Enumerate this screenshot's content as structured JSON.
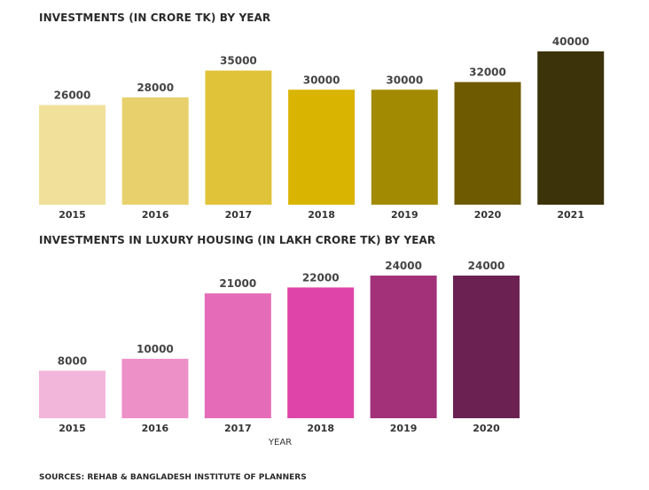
{
  "chart_data": [
    {
      "type": "bar",
      "title": "INVESTMENTS (IN CRORE TK) BY YEAR",
      "categories": [
        "2015",
        "2016",
        "2017",
        "2018",
        "2019",
        "2020",
        "2021"
      ],
      "values": [
        26000,
        28000,
        35000,
        30000,
        30000,
        32000,
        40000
      ],
      "data_labels": [
        "26000",
        "28000",
        "35000",
        "30000",
        "30000",
        "32000",
        "40000"
      ],
      "colors": [
        "#f0e09a",
        "#e8d16c",
        "#e1c33a",
        "#d9b400",
        "#a38a03",
        "#6e5a00",
        "#3c330b"
      ],
      "xlabel": "",
      "ylabel": "",
      "ylim": [
        0,
        40000
      ],
      "grid": false,
      "legend": "none"
    },
    {
      "type": "bar",
      "title": "INVESTMENTS IN LUXURY HOUSING (IN LAKH CRORE TK) BY YEAR",
      "categories": [
        "2015",
        "2016",
        "2017",
        "2018",
        "2019",
        "2020"
      ],
      "values": [
        8000,
        10000,
        21000,
        22000,
        24000,
        24000
      ],
      "data_labels": [
        "8000",
        "10000",
        "21000",
        "22000",
        "24000",
        "24000"
      ],
      "colors": [
        "#f3b6db",
        "#ee90c8",
        "#e56bb8",
        "#df45a9",
        "#a2317a",
        "#6b2252"
      ],
      "xlabel": "YEAR",
      "ylabel": "",
      "ylim": [
        0,
        24000
      ],
      "grid": false,
      "legend": "none"
    }
  ],
  "source": "SOURCES: REHAB & BANGLADESH INSTITUTE OF PLANNERS"
}
